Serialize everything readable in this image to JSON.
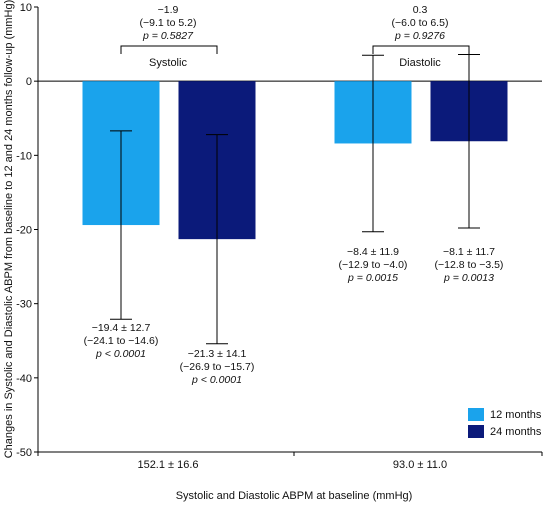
{
  "chart_data": {
    "type": "bar",
    "xlabel": "Systolic and Diastolic ABPM at baseline (mmHg)",
    "ylabel": "Changes in Systolic and Diastolic ABPM from baseline to 12 and 24 months follow-up (mmHg)",
    "ylim": [
      -50,
      10
    ],
    "yticks": [
      "10",
      "0",
      "-10",
      "-20",
      "-30",
      "-40",
      "-50"
    ],
    "yticks_values": [
      10,
      0,
      -10,
      -20,
      -30,
      -40,
      -50
    ],
    "categories": [
      "152.1 ± 16.6",
      "93.0 ± 11.0"
    ],
    "group_labels": [
      "Systolic",
      "Diastolic"
    ],
    "series": [
      {
        "name": "12 months",
        "color": "#1aa3ec",
        "values": [
          -19.4,
          -8.4
        ],
        "err_low": [
          -32.1,
          -20.3
        ],
        "err_high": [
          -6.7,
          3.5
        ],
        "labels": [
          {
            "line1": "−19.4 ± 12.7",
            "line2": "(−24.1 to −14.6)",
            "p": "p < 0.0001"
          },
          {
            "line1": "−8.4 ± 11.9",
            "line2": "(−12.9 to −4.0)",
            "p": "p = 0.0015"
          }
        ]
      },
      {
        "name": "24 months",
        "color": "#0b1a7a",
        "values": [
          -21.3,
          -8.1
        ],
        "err_low": [
          -35.4,
          -19.8
        ],
        "err_high": [
          -7.2,
          3.6
        ],
        "labels": [
          {
            "line1": "−21.3 ± 14.1",
            "line2": "(−26.9 to −15.7)",
            "p": "p < 0.0001"
          },
          {
            "line1": "−8.1 ± 11.7",
            "line2": "(−12.8 to −3.5)",
            "p": "p = 0.0013"
          }
        ]
      }
    ],
    "comparisons": [
      {
        "line1": "−1.9",
        "line2": "(−9.1 to 5.2)",
        "p": "p = 0.5827"
      },
      {
        "line1": "0.3",
        "line2": "(−6.0 to 6.5)",
        "p": "p = 0.9276"
      }
    ],
    "legend": {
      "position": "bottom-right"
    },
    "grid": false
  }
}
